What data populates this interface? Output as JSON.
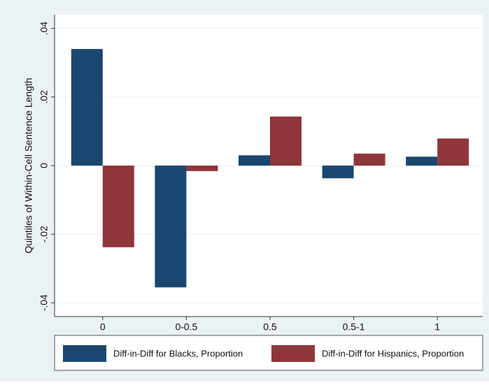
{
  "chart_data": {
    "type": "bar",
    "y_label": "Quintiles of Within-Cell Sentence Length",
    "categories": [
      "0",
      "0-0.5",
      "0.5",
      "0.5-1",
      "1"
    ],
    "series": [
      {
        "name": "Diff-in-Diff for Blacks, Proportion",
        "color": "#1a476f",
        "values": [
          0.034,
          -0.0355,
          0.003,
          -0.0037,
          0.0026
        ]
      },
      {
        "name": "Diff-in-Diff for Hispanics, Proportion",
        "color": "#90353b",
        "values": [
          -0.0238,
          -0.0016,
          0.0143,
          0.0035,
          0.0079
        ]
      }
    ],
    "ylim": [
      -0.044,
      0.044
    ],
    "yticks": [
      {
        "value": -0.04,
        "label": "-.04"
      },
      {
        "value": -0.02,
        "label": "-.02"
      },
      0,
      {
        "value": 0.02,
        "label": ".02"
      },
      {
        "value": 0.04,
        "label": ".04"
      }
    ],
    "grid": true
  }
}
